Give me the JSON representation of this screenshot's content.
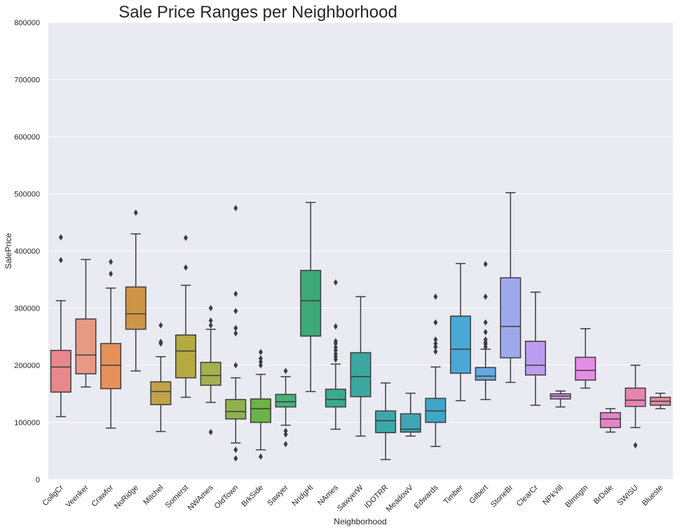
{
  "chart_data": {
    "type": "boxplot",
    "title": "Sale Price Ranges per Neighborhood",
    "xlabel": "Neighborhood",
    "ylabel": "SalePrice",
    "ylim": [
      0,
      800000
    ],
    "yticks": [
      "0",
      "100000",
      "200000",
      "300000",
      "400000",
      "500000",
      "600000",
      "700000",
      "800000"
    ],
    "grid": true,
    "legend": "none",
    "categories": [
      "CollgCr",
      "Veenker",
      "Crawfor",
      "NoRidge",
      "Mitchel",
      "Somerst",
      "NWAmes",
      "OldTown",
      "BrkSide",
      "Sawyer",
      "NridgHt",
      "NAmes",
      "SawyerW",
      "IDOTRR",
      "MeadowV",
      "Edwards",
      "Timber",
      "Gilbert",
      "StoneBr",
      "ClearCr",
      "NPkVill",
      "Blmngtn",
      "BrDale",
      "SWISU",
      "Blueste"
    ],
    "colors": [
      "#e8878c",
      "#e79985",
      "#e6905a",
      "#ce9548",
      "#c0a34a",
      "#b5aa42",
      "#a5b04f",
      "#8fb24f",
      "#6bb346",
      "#46b17a",
      "#3da878",
      "#3aaa8f",
      "#3ba79e",
      "#3ca9a9",
      "#3fa6b6",
      "#3fa6c5",
      "#4aa8d6",
      "#63a8e0",
      "#9ea9ed",
      "#bc9cf0",
      "#d89aed",
      "#e58de6",
      "#e683c8",
      "#e685b0",
      "#e38a9c"
    ],
    "boxes": [
      {
        "q1": 153000,
        "median": 197000,
        "q3": 226000,
        "lo": 110000,
        "hi": 313000,
        "outliers": [
          384000,
          424000
        ]
      },
      {
        "q1": 185000,
        "median": 218000,
        "q3": 281000,
        "lo": 162000,
        "hi": 385000,
        "outliers": []
      },
      {
        "q1": 159000,
        "median": 200000,
        "q3": 238000,
        "lo": 90000,
        "hi": 335000,
        "outliers": [
          360000,
          381000
        ]
      },
      {
        "q1": 263000,
        "median": 290000,
        "q3": 337000,
        "lo": 190000,
        "hi": 430000,
        "outliers": [
          467000
        ]
      },
      {
        "q1": 131000,
        "median": 154000,
        "q3": 171000,
        "lo": 84000,
        "hi": 215000,
        "outliers": [
          238000,
          241000,
          270000
        ]
      },
      {
        "q1": 178000,
        "median": 225000,
        "q3": 253000,
        "lo": 144000,
        "hi": 340000,
        "outliers": [
          371000,
          423000
        ]
      },
      {
        "q1": 165000,
        "median": 182000,
        "q3": 205000,
        "lo": 135000,
        "hi": 263000,
        "outliers": [
          83000,
          270000,
          278000,
          300000
        ]
      },
      {
        "q1": 106000,
        "median": 119000,
        "q3": 140000,
        "lo": 64000,
        "hi": 178000,
        "outliers": [
          37000,
          52000,
          200000,
          256000,
          265000,
          295000,
          325000,
          475000
        ]
      },
      {
        "q1": 100000,
        "median": 124000,
        "q3": 141000,
        "lo": 52000,
        "hi": 184000,
        "outliers": [
          40000,
          200000,
          206000,
          212000,
          223000
        ]
      },
      {
        "q1": 127000,
        "median": 136000,
        "q3": 149000,
        "lo": 95000,
        "hi": 180000,
        "outliers": [
          62000,
          79000,
          85000,
          190000
        ]
      },
      {
        "q1": 251000,
        "median": 313000,
        "q3": 366000,
        "lo": 154000,
        "hi": 485000,
        "outliers": []
      },
      {
        "q1": 127000,
        "median": 140000,
        "q3": 158000,
        "lo": 88000,
        "hi": 202000,
        "outliers": [
          210000,
          215000,
          220000,
          226000,
          231000,
          238000,
          242000,
          268000,
          345000
        ]
      },
      {
        "q1": 145000,
        "median": 180000,
        "q3": 222000,
        "lo": 76000,
        "hi": 320000,
        "outliers": []
      },
      {
        "q1": 82000,
        "median": 103000,
        "q3": 120000,
        "lo": 35000,
        "hi": 169000,
        "outliers": []
      },
      {
        "q1": 83000,
        "median": 88000,
        "q3": 115000,
        "lo": 76000,
        "hi": 151000,
        "outliers": []
      },
      {
        "q1": 100000,
        "median": 120000,
        "q3": 142000,
        "lo": 58000,
        "hi": 197000,
        "outliers": [
          224000,
          232000,
          238000,
          245000,
          275000,
          320000
        ]
      },
      {
        "q1": 186000,
        "median": 228000,
        "q3": 286000,
        "lo": 138000,
        "hi": 378000,
        "outliers": []
      },
      {
        "q1": 174000,
        "median": 181000,
        "q3": 196000,
        "lo": 140000,
        "hi": 228000,
        "outliers": [
          232000,
          237000,
          240000,
          245000,
          258000,
          275000,
          320000,
          377000
        ]
      },
      {
        "q1": 213000,
        "median": 268000,
        "q3": 353000,
        "lo": 170000,
        "hi": 502000,
        "outliers": []
      },
      {
        "q1": 183000,
        "median": 200000,
        "q3": 242000,
        "lo": 130000,
        "hi": 328000,
        "outliers": []
      },
      {
        "q1": 141000,
        "median": 146000,
        "q3": 150000,
        "lo": 127000,
        "hi": 155000,
        "outliers": []
      },
      {
        "q1": 174000,
        "median": 191000,
        "q3": 214000,
        "lo": 160000,
        "hi": 264000,
        "outliers": []
      },
      {
        "q1": 91000,
        "median": 106000,
        "q3": 117000,
        "lo": 83000,
        "hi": 124000,
        "outliers": []
      },
      {
        "q1": 128000,
        "median": 139000,
        "q3": 160000,
        "lo": 91000,
        "hi": 200000,
        "outliers": [
          60000
        ]
      },
      {
        "q1": 130000,
        "median": 137000,
        "q3": 144000,
        "lo": 124000,
        "hi": 151000,
        "outliers": []
      }
    ]
  }
}
